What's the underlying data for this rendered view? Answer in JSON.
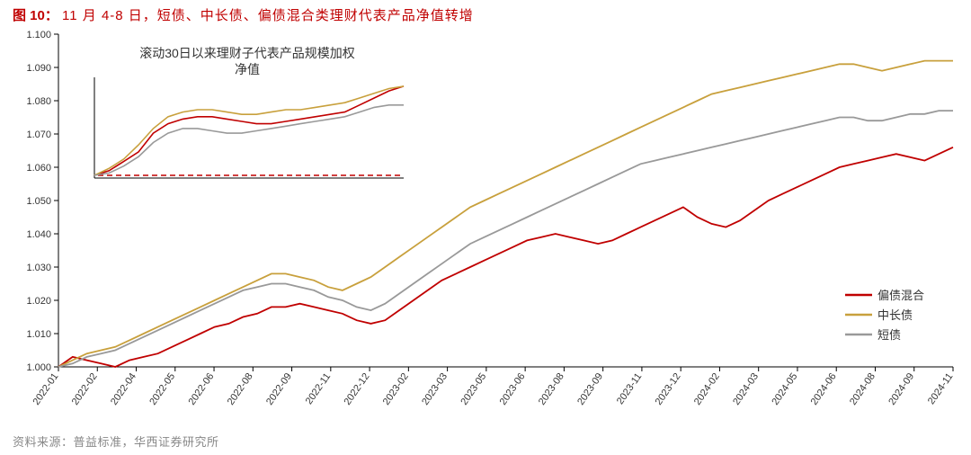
{
  "figure": {
    "title_prefix": "图 10：",
    "title_main": "11 月 4-8 日，短债、中长债、偏债混合类理财代表产品净值转增",
    "source": "资料来源：普益标准，华西证券研究所",
    "background_color": "#ffffff",
    "title_color": "#c00000",
    "source_color": "#888888"
  },
  "main_chart": {
    "type": "line",
    "ylim": [
      1.0,
      1.1
    ],
    "ytick_step": 0.01,
    "yticks": [
      "1.000",
      "1.010",
      "1.020",
      "1.030",
      "1.040",
      "1.050",
      "1.060",
      "1.070",
      "1.080",
      "1.090",
      "1.100"
    ],
    "xticks": [
      "2022-01",
      "2022-02",
      "2022-04",
      "2022-05",
      "2022-06",
      "2022-08",
      "2022-09",
      "2022-11",
      "2022-12",
      "2023-02",
      "2023-03",
      "2023-05",
      "2023-06",
      "2023-08",
      "2023-09",
      "2023-11",
      "2023-12",
      "2024-02",
      "2024-03",
      "2024-05",
      "2024-06",
      "2024-08",
      "2024-09",
      "2024-11"
    ],
    "axis_color": "#000000",
    "grid": false,
    "line_width": 1.8,
    "series": [
      {
        "name": "偏债混合",
        "color": "#c00000",
        "values": [
          1.0,
          1.003,
          1.002,
          1.001,
          1.0,
          1.002,
          1.003,
          1.004,
          1.006,
          1.008,
          1.01,
          1.012,
          1.013,
          1.015,
          1.016,
          1.018,
          1.018,
          1.019,
          1.018,
          1.017,
          1.016,
          1.014,
          1.013,
          1.014,
          1.017,
          1.02,
          1.023,
          1.026,
          1.028,
          1.03,
          1.032,
          1.034,
          1.036,
          1.038,
          1.039,
          1.04,
          1.039,
          1.038,
          1.037,
          1.038,
          1.04,
          1.042,
          1.044,
          1.046,
          1.048,
          1.045,
          1.043,
          1.042,
          1.044,
          1.047,
          1.05,
          1.052,
          1.054,
          1.056,
          1.058,
          1.06,
          1.061,
          1.062,
          1.063,
          1.064,
          1.063,
          1.062,
          1.064,
          1.066
        ]
      },
      {
        "name": "中长债",
        "color": "#c8a03c",
        "values": [
          1.0,
          1.002,
          1.004,
          1.005,
          1.006,
          1.008,
          1.01,
          1.012,
          1.014,
          1.016,
          1.018,
          1.02,
          1.022,
          1.024,
          1.026,
          1.028,
          1.028,
          1.027,
          1.026,
          1.024,
          1.023,
          1.025,
          1.027,
          1.03,
          1.033,
          1.036,
          1.039,
          1.042,
          1.045,
          1.048,
          1.05,
          1.052,
          1.054,
          1.056,
          1.058,
          1.06,
          1.062,
          1.064,
          1.066,
          1.068,
          1.07,
          1.072,
          1.074,
          1.076,
          1.078,
          1.08,
          1.082,
          1.083,
          1.084,
          1.085,
          1.086,
          1.087,
          1.088,
          1.089,
          1.09,
          1.091,
          1.091,
          1.09,
          1.089,
          1.09,
          1.091,
          1.092,
          1.092,
          1.092
        ]
      },
      {
        "name": "短债",
        "color": "#999999",
        "values": [
          1.0,
          1.001,
          1.003,
          1.004,
          1.005,
          1.007,
          1.009,
          1.011,
          1.013,
          1.015,
          1.017,
          1.019,
          1.021,
          1.023,
          1.024,
          1.025,
          1.025,
          1.024,
          1.023,
          1.021,
          1.02,
          1.018,
          1.017,
          1.019,
          1.022,
          1.025,
          1.028,
          1.031,
          1.034,
          1.037,
          1.039,
          1.041,
          1.043,
          1.045,
          1.047,
          1.049,
          1.051,
          1.053,
          1.055,
          1.057,
          1.059,
          1.061,
          1.062,
          1.063,
          1.064,
          1.065,
          1.066,
          1.067,
          1.068,
          1.069,
          1.07,
          1.071,
          1.072,
          1.073,
          1.074,
          1.075,
          1.075,
          1.074,
          1.074,
          1.075,
          1.076,
          1.076,
          1.077,
          1.077
        ]
      }
    ],
    "legend": {
      "position": "right-bottom",
      "items": [
        "偏债混合",
        "中长债",
        "短债"
      ],
      "colors": [
        "#c00000",
        "#c8a03c",
        "#999999"
      ]
    }
  },
  "inset_chart": {
    "type": "line",
    "title": "滚动30日以来理财子代表产品规模加权净值",
    "title_fontsize": 14,
    "background_color": "#ffffff",
    "border_color": "#000000",
    "line_width": 1.6,
    "baseline_color": "#c00000",
    "baseline_dash": "6,4",
    "series": [
      {
        "name": "偏债混合",
        "color": "#c00000",
        "values": [
          1.05,
          1.052,
          1.056,
          1.06,
          1.068,
          1.072,
          1.074,
          1.075,
          1.075,
          1.074,
          1.073,
          1.072,
          1.072,
          1.073,
          1.074,
          1.075,
          1.076,
          1.077,
          1.08,
          1.083,
          1.086,
          1.088
        ]
      },
      {
        "name": "中长债",
        "color": "#c8a03c",
        "values": [
          1.05,
          1.053,
          1.057,
          1.063,
          1.07,
          1.075,
          1.077,
          1.078,
          1.078,
          1.077,
          1.076,
          1.076,
          1.077,
          1.078,
          1.078,
          1.079,
          1.08,
          1.081,
          1.083,
          1.085,
          1.087,
          1.088
        ]
      },
      {
        "name": "短债",
        "color": "#999999",
        "values": [
          1.05,
          1.051,
          1.054,
          1.058,
          1.064,
          1.068,
          1.07,
          1.07,
          1.069,
          1.068,
          1.068,
          1.069,
          1.07,
          1.071,
          1.072,
          1.073,
          1.074,
          1.075,
          1.077,
          1.079,
          1.08,
          1.08
        ]
      }
    ]
  }
}
